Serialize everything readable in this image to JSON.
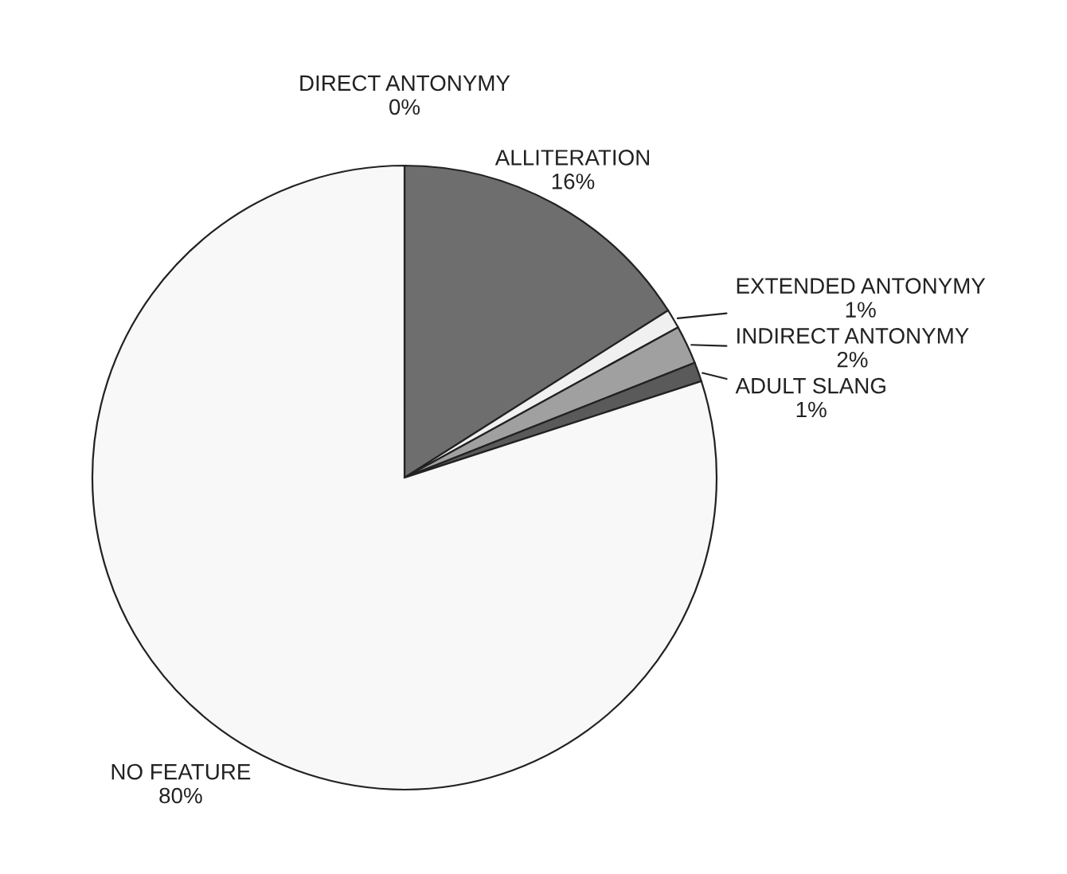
{
  "chart_data": {
    "type": "pie",
    "categories": [
      "DIRECT ANTONYMY",
      "ALLITERATION",
      "EXTENDED ANTONYMY",
      "INDIRECT ANTONYMY",
      "ADULT SLANG",
      "NO FEATURE"
    ],
    "values": [
      0,
      16,
      1,
      2,
      1,
      80
    ],
    "colors": [
      "#303030",
      "#6e6e6e",
      "#f0f0f0",
      "#a0a0a0",
      "#5a5a5a",
      "#f8f8f8"
    ],
    "value_labels": [
      "0%",
      "16%",
      "1%",
      "2%",
      "1%",
      "80%"
    ],
    "legend": false
  }
}
